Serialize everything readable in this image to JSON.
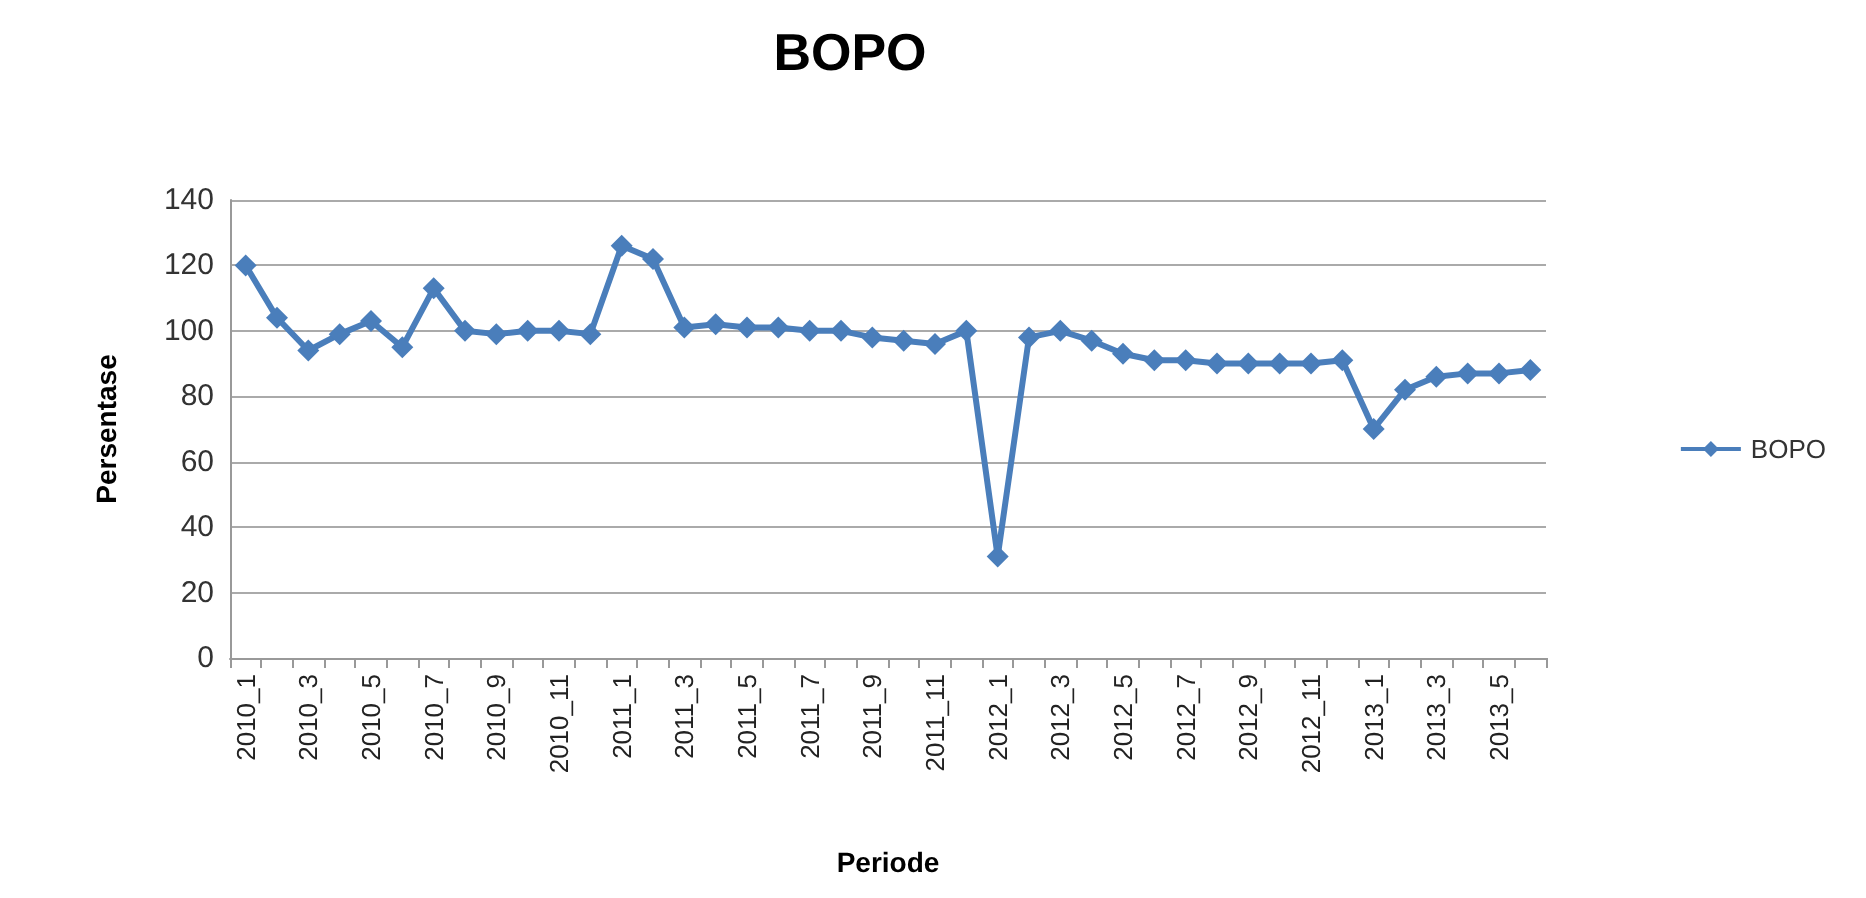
{
  "chart_data": {
    "type": "line",
    "title": "BOPO",
    "xlabel": "Periode",
    "ylabel": "Persentase",
    "categories": [
      "2010_1",
      null,
      "2010_3",
      null,
      "2010_5",
      null,
      "2010_7",
      null,
      "2010_9",
      null,
      "2010_11",
      null,
      "2011_1",
      null,
      "2011_3",
      null,
      "2011_5",
      null,
      "2011_7",
      null,
      "2011_9",
      null,
      "2011_11",
      null,
      "2012_1",
      null,
      "2012_3",
      null,
      "2012_5",
      null,
      "2012_7",
      null,
      "2012_9",
      null,
      "2012_11",
      null,
      "2013_1",
      null,
      "2013_3",
      null,
      "2013_5",
      null
    ],
    "series": [
      {
        "name": "BOPO",
        "color": "#4a7ebb",
        "values": [
          120,
          104,
          94,
          99,
          103,
          95,
          113,
          100,
          99,
          100,
          100,
          99,
          126,
          122,
          101,
          102,
          101,
          101,
          100,
          100,
          98,
          97,
          96,
          100,
          31,
          98,
          100,
          97,
          93,
          91,
          91,
          90,
          90,
          90,
          90,
          91,
          70,
          82,
          86,
          87,
          87,
          88
        ]
      }
    ],
    "ylim": [
      0,
      140
    ],
    "yticks": [
      0,
      20,
      40,
      60,
      80,
      100,
      120,
      140
    ],
    "grid": "y",
    "legend": "right",
    "marker": "diamond",
    "line_style": "solid"
  }
}
